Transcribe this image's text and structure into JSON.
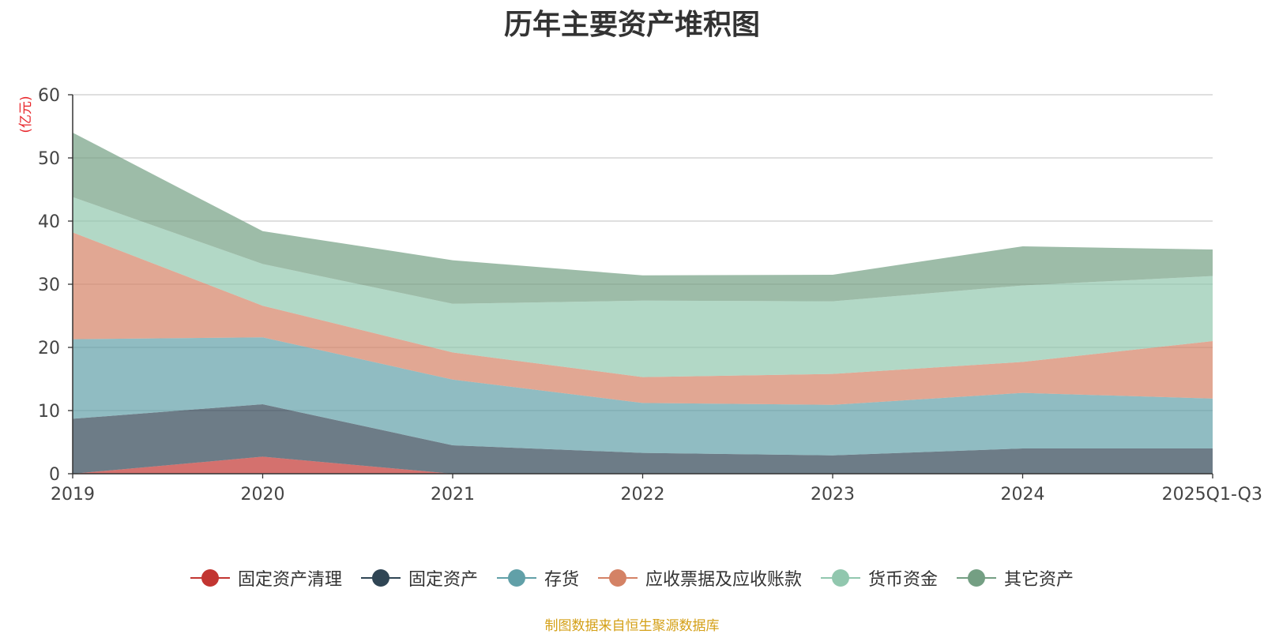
{
  "chart_data": {
    "type": "area",
    "stacked": true,
    "title": "历年主要资产堆积图",
    "ylabel": "(亿元)",
    "xlabel": "",
    "ylim": [
      0,
      60
    ],
    "yticks": [
      0,
      10,
      20,
      30,
      40,
      50,
      60
    ],
    "grid": true,
    "legend_position": "bottom",
    "categories": [
      "2019",
      "2020",
      "2021",
      "2022",
      "2023",
      "2024",
      "2025Q1-Q3"
    ],
    "series": [
      {
        "name": "固定资产清理",
        "color": "#c23531",
        "values": [
          0.0,
          2.7,
          0.0,
          0.0,
          0.0,
          0.0,
          0.0
        ]
      },
      {
        "name": "固定资产",
        "color": "#2f4554",
        "values": [
          8.7,
          8.3,
          4.5,
          3.3,
          2.9,
          4.0,
          4.0
        ]
      },
      {
        "name": "存货",
        "color": "#61a0a8",
        "values": [
          12.6,
          10.6,
          10.4,
          7.9,
          8.0,
          8.8,
          7.9
        ]
      },
      {
        "name": "应收票据及应收账款",
        "color": "#d48265",
        "values": [
          16.9,
          5.0,
          4.3,
          4.1,
          4.9,
          4.9,
          9.1
        ]
      },
      {
        "name": "货币资金",
        "color": "#91c7ae",
        "values": [
          5.6,
          6.6,
          7.7,
          12.1,
          11.5,
          12.1,
          10.3
        ]
      },
      {
        "name": "其它资产",
        "color": "#749f83",
        "values": [
          10.2,
          5.2,
          6.9,
          4.0,
          4.2,
          6.2,
          4.2
        ]
      }
    ]
  },
  "source": "制图数据来自恒生聚源数据库"
}
